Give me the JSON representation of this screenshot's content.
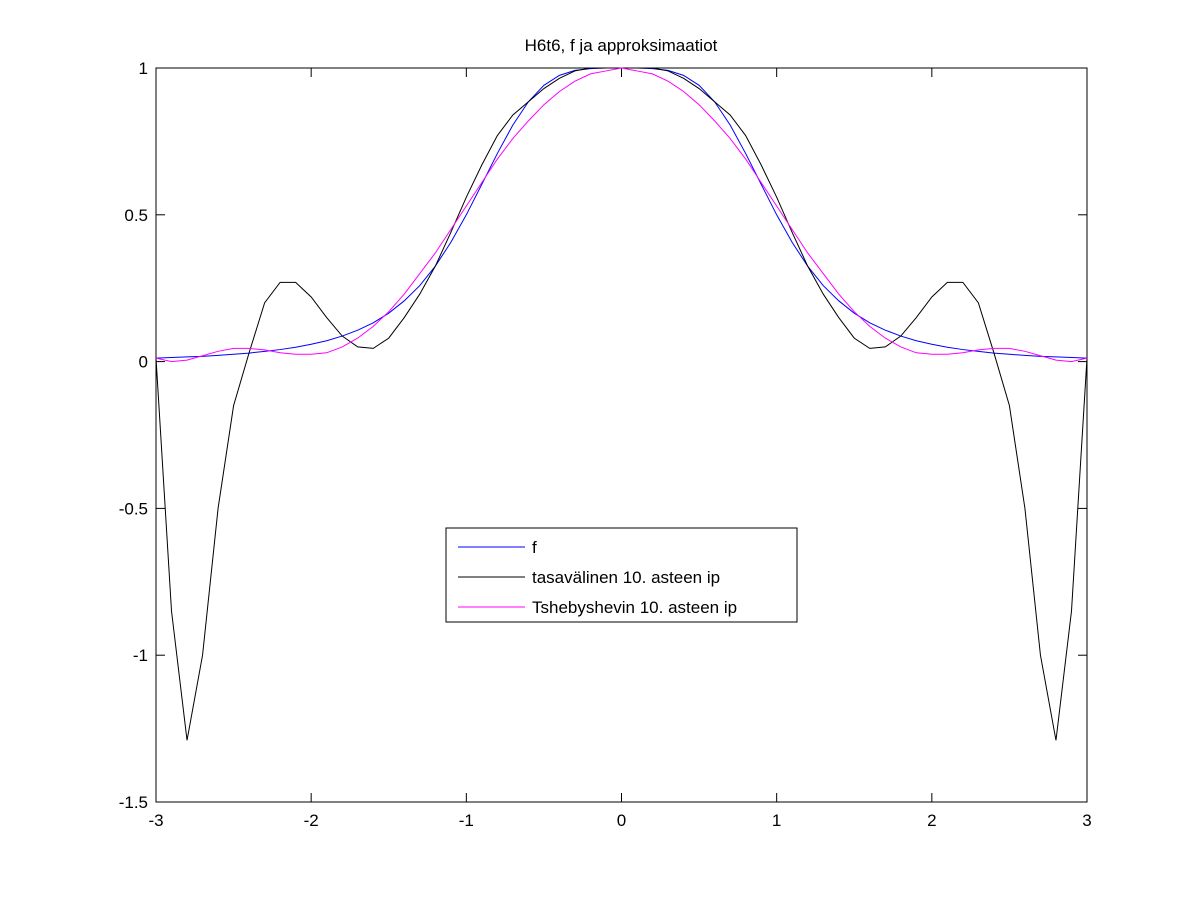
{
  "chart_data": {
    "type": "line",
    "title": "H6t6, f ja approksimaatiot",
    "x": [
      -3,
      -2.9,
      -2.8,
      -2.7,
      -2.6,
      -2.5,
      -2.4,
      -2.3,
      -2.2,
      -2.1,
      -2,
      -1.9,
      -1.8,
      -1.7,
      -1.6,
      -1.5,
      -1.4,
      -1.3,
      -1.2,
      -1.1,
      -1,
      -0.9,
      -0.8,
      -0.7,
      -0.6,
      -0.5,
      -0.4,
      -0.3,
      -0.2,
      -0.1,
      0,
      0.1,
      0.2,
      0.3,
      0.4,
      0.5,
      0.6,
      0.7,
      0.8,
      0.9,
      1,
      1.1,
      1.2,
      1.3,
      1.4,
      1.5,
      1.6,
      1.7,
      1.8,
      1.9,
      2,
      2.1,
      2.2,
      2.3,
      2.4,
      2.5,
      2.6,
      2.7,
      2.8,
      2.9,
      3
    ],
    "series": [
      {
        "name": "f",
        "color": "#0000ff",
        "values": [
          0.012,
          0.014,
          0.016,
          0.018,
          0.021,
          0.025,
          0.029,
          0.035,
          0.041,
          0.049,
          0.059,
          0.071,
          0.087,
          0.107,
          0.132,
          0.165,
          0.207,
          0.259,
          0.325,
          0.406,
          0.5,
          0.604,
          0.709,
          0.806,
          0.885,
          0.941,
          0.975,
          0.992,
          0.998,
          1,
          1,
          1,
          0.998,
          0.992,
          0.975,
          0.941,
          0.885,
          0.806,
          0.709,
          0.604,
          0.5,
          0.406,
          0.325,
          0.259,
          0.207,
          0.165,
          0.132,
          0.107,
          0.087,
          0.071,
          0.059,
          0.049,
          0.041,
          0.035,
          0.029,
          0.025,
          0.021,
          0.018,
          0.016,
          0.014,
          0.012
        ]
      },
      {
        "name": "tasavälinen 10. asteen ip",
        "color": "#000000",
        "values": [
          0.012,
          -0.85,
          -1.29,
          -1.0,
          -0.5,
          -0.15,
          0.03,
          0.2,
          0.27,
          0.27,
          0.22,
          0.15,
          0.087,
          0.05,
          0.045,
          0.08,
          0.15,
          0.23,
          0.325,
          0.44,
          0.56,
          0.67,
          0.77,
          0.84,
          0.885,
          0.93,
          0.965,
          0.99,
          1,
          1,
          1,
          1,
          1,
          0.99,
          0.965,
          0.93,
          0.885,
          0.84,
          0.77,
          0.67,
          0.56,
          0.44,
          0.325,
          0.23,
          0.15,
          0.08,
          0.045,
          0.05,
          0.087,
          0.15,
          0.22,
          0.27,
          0.27,
          0.2,
          0.03,
          -0.15,
          -0.5,
          -1.0,
          -1.29,
          -0.85,
          0.012
        ]
      },
      {
        "name": "Tshebyshevin 10. asteen ip",
        "color": "#ff00ff",
        "values": [
          0.012,
          0,
          0.005,
          0.02,
          0.035,
          0.045,
          0.045,
          0.04,
          0.03,
          0.025,
          0.025,
          0.03,
          0.05,
          0.08,
          0.12,
          0.17,
          0.23,
          0.3,
          0.37,
          0.45,
          0.53,
          0.61,
          0.69,
          0.76,
          0.82,
          0.875,
          0.92,
          0.955,
          0.98,
          0.99,
          1,
          0.99,
          0.98,
          0.955,
          0.92,
          0.875,
          0.82,
          0.76,
          0.69,
          0.61,
          0.53,
          0.45,
          0.37,
          0.3,
          0.23,
          0.17,
          0.12,
          0.08,
          0.05,
          0.03,
          0.025,
          0.025,
          0.03,
          0.04,
          0.045,
          0.045,
          0.035,
          0.02,
          0.005,
          0,
          0.012
        ]
      }
    ],
    "xlim": [
      -3,
      3
    ],
    "ylim": [
      -1.5,
      1
    ],
    "xticks": [
      -3,
      -2,
      -1,
      0,
      1,
      2,
      3
    ],
    "yticks": [
      -1.5,
      -1,
      -0.5,
      0,
      0.5,
      1
    ]
  }
}
